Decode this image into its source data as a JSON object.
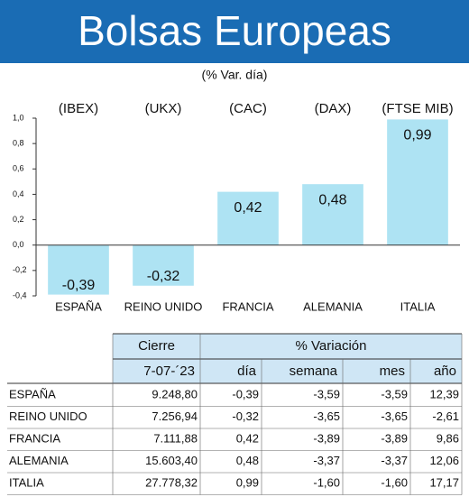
{
  "chart_data": {
    "type": "bar",
    "title": "Bolsas Europeas",
    "subtitle": "(% Var. día)",
    "index_labels": [
      "(IBEX)",
      "(UKX)",
      "(CAC)",
      "(DAX)",
      "(FTSE MIB)"
    ],
    "categories": [
      "ESPAÑA",
      "REINO UNIDO",
      "FRANCIA",
      "ALEMANIA",
      "ITALIA"
    ],
    "values": [
      -0.39,
      -0.32,
      0.42,
      0.48,
      0.99
    ],
    "value_labels": [
      "-0,39",
      "-0,32",
      "0,42",
      "0,48",
      "0,99"
    ],
    "color": "#aee3f3",
    "ylim": [
      -0.4,
      1.0
    ],
    "yticks": [
      {
        "value": -0.4,
        "label": "-0,4"
      },
      {
        "value": -0.2,
        "label": "-0,2"
      },
      {
        "value": 0,
        "label": "0,0"
      },
      {
        "value": 0.2,
        "label": "0,2"
      },
      {
        "value": 0.4,
        "label": "0,4"
      },
      {
        "value": 0.6,
        "label": "0,6"
      },
      {
        "value": 0.8,
        "label": "0,8"
      },
      {
        "value": 1.0,
        "label": "1,0"
      }
    ],
    "grid": false
  },
  "table": {
    "header": [
      "Cierre",
      "% Variación"
    ],
    "subheader": [
      "7-07-´23",
      "día",
      "semana",
      "mes",
      "año"
    ],
    "rows": [
      [
        "ESPAÑA",
        "9.248,80",
        "-0,39",
        "-3,59",
        "-3,59",
        "12,39"
      ],
      [
        "REINO UNIDO",
        "7.256,94",
        "-0,32",
        "-3,65",
        "-3,65",
        "-2,61"
      ],
      [
        "FRANCIA",
        "7.111,88",
        "0,42",
        "-3,89",
        "-3,89",
        "9,86"
      ],
      [
        "ALEMANIA",
        "15.603,40",
        "0,48",
        "-3,37",
        "-3,37",
        "12,06"
      ],
      [
        "ITALIA",
        "27.778,32",
        "0,99",
        "-1,60",
        "-1,60",
        "17,17"
      ]
    ]
  }
}
